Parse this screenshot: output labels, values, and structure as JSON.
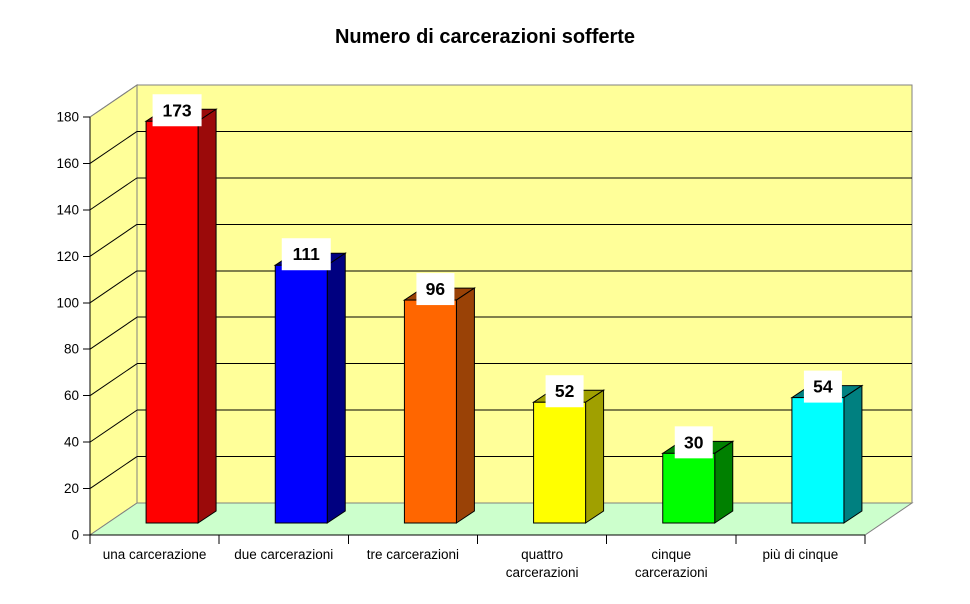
{
  "chart_data": {
    "type": "bar",
    "projection": "3d-oblique",
    "title": "Numero di carcerazioni sofferte",
    "categories": [
      "una carcerazione",
      "due carcerazioni",
      "tre carcerazioni",
      "quattro carcerazioni",
      "cinque carcerazioni",
      "più di cinque"
    ],
    "values": [
      173,
      111,
      96,
      52,
      30,
      54
    ],
    "data_labels": [
      "173",
      "111",
      "96",
      "52",
      "30",
      "54"
    ],
    "xlabel": "",
    "ylabel": "",
    "ylim": [
      0,
      180
    ],
    "yticks": [
      0,
      20,
      40,
      60,
      80,
      100,
      120,
      140,
      160,
      180
    ],
    "grid": true,
    "legend": "none",
    "colors": {
      "bar_front": [
        "#FF0000",
        "#0000FF",
        "#FF6600",
        "#FFFF00",
        "#00FF00",
        "#00FFFF"
      ],
      "bar_dark": [
        "#9B0A0A",
        "#000080",
        "#9A4206",
        "#A0A000",
        "#008000",
        "#008080"
      ],
      "wall": "#FFFF99",
      "floor": "#CCFFCC",
      "wall_border": "#808080",
      "line": "#000000",
      "title_color": "#000000",
      "data_label_bg": "#FFFFFF",
      "data_label_text": "#000000",
      "tick_label_text": "#000000"
    }
  }
}
